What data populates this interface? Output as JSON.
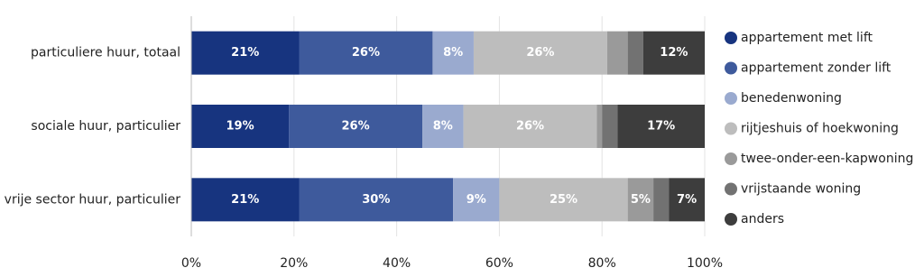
{
  "chart_data": {
    "type": "stacked-bar-horizontal",
    "categories": [
      "particuliere huur, totaal",
      "sociale huur, particulier",
      "vrije sector huur, particulier"
    ],
    "series": [
      {
        "name": "appartement met lift",
        "color": "#17347f",
        "values": [
          21,
          19,
          21
        ],
        "value_labels": [
          "21%",
          "19%",
          "21%"
        ]
      },
      {
        "name": "appartement zonder lift",
        "color": "#3e5a9c",
        "values": [
          26,
          26,
          30
        ],
        "value_labels": [
          "26%",
          "26%",
          "30%"
        ]
      },
      {
        "name": "benedenwoning",
        "color": "#9aaacf",
        "values": [
          8,
          8,
          9
        ],
        "value_labels": [
          "8%",
          "8%",
          "9%"
        ]
      },
      {
        "name": "rijtjeshuis of hoekwoning",
        "color": "#bdbdbd",
        "values": [
          26,
          26,
          25
        ],
        "value_labels": [
          "26%",
          "26%",
          "25%"
        ]
      },
      {
        "name": "twee-onder-een-kapwoning",
        "color": "#9a9a9a",
        "values": [
          4,
          1,
          5
        ],
        "value_labels": [
          null,
          null,
          "5%"
        ]
      },
      {
        "name": "vrijstaande woning",
        "color": "#727272",
        "values": [
          3,
          3,
          3
        ],
        "value_labels": [
          null,
          null,
          null
        ]
      },
      {
        "name": "anders",
        "color": "#3d3d3d",
        "values": [
          12,
          17,
          7
        ],
        "value_labels": [
          "12%",
          "17%",
          "7%"
        ]
      }
    ],
    "xlim": [
      0,
      100
    ],
    "xticks": [
      {
        "value": 0,
        "label": "0%"
      },
      {
        "value": 20,
        "label": "20%"
      },
      {
        "value": 40,
        "label": "40%"
      },
      {
        "value": 60,
        "label": "60%"
      },
      {
        "value": 80,
        "label": "80%"
      },
      {
        "value": 100,
        "label": "100%"
      }
    ],
    "grid": true,
    "legend": "right"
  }
}
